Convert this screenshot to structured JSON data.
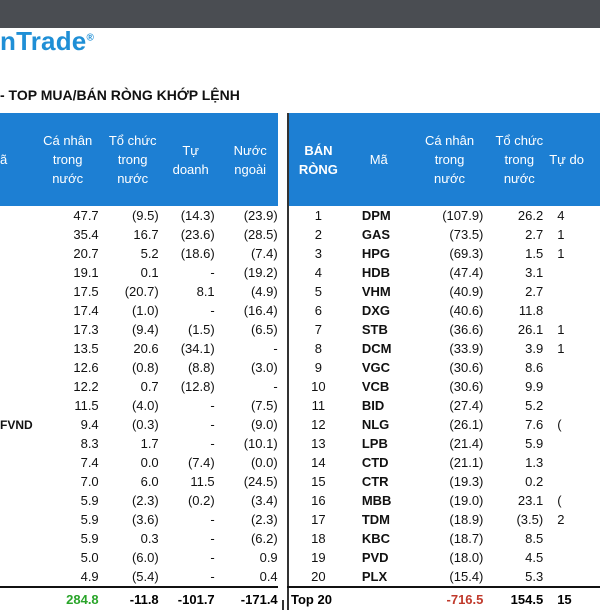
{
  "logo": {
    "text": "nTrade",
    "mark": "®"
  },
  "title": "- TOP MUA/BÁN RÒNG KHỚP LỆNH",
  "left": {
    "headers": {
      "code_fragment": "ã",
      "individual": [
        "Cá nhân",
        "trong",
        "nước"
      ],
      "institution": [
        "Tổ chức",
        "trong",
        "nước"
      ],
      "proprietary": [
        "Tự",
        "doanh"
      ],
      "foreign": [
        "Nước",
        "ngoài"
      ]
    },
    "rows": [
      {
        "label": "",
        "ind": "47.7",
        "ins": "(9.5)",
        "prop": "(14.3)",
        "for": "(23.9)"
      },
      {
        "label": "",
        "ind": "35.4",
        "ins": "16.7",
        "prop": "(23.6)",
        "for": "(28.5)"
      },
      {
        "label": "",
        "ind": "20.7",
        "ins": "5.2",
        "prop": "(18.6)",
        "for": "(7.4)"
      },
      {
        "label": "",
        "ind": "19.1",
        "ins": "0.1",
        "prop": "-",
        "for": "(19.2)"
      },
      {
        "label": "",
        "ind": "17.5",
        "ins": "(20.7)",
        "prop": "8.1",
        "for": "(4.9)"
      },
      {
        "label": "",
        "ind": "17.4",
        "ins": "(1.0)",
        "prop": "-",
        "for": "(16.4)"
      },
      {
        "label": "",
        "ind": "17.3",
        "ins": "(9.4)",
        "prop": "(1.5)",
        "for": "(6.5)"
      },
      {
        "label": "",
        "ind": "13.5",
        "ins": "20.6",
        "prop": "(34.1)",
        "for": "-"
      },
      {
        "label": "",
        "ind": "12.6",
        "ins": "(0.8)",
        "prop": "(8.8)",
        "for": "(3.0)"
      },
      {
        "label": "",
        "ind": "12.2",
        "ins": "0.7",
        "prop": "(12.8)",
        "for": "-"
      },
      {
        "label": "",
        "ind": "11.5",
        "ins": "(4.0)",
        "prop": "-",
        "for": "(7.5)"
      },
      {
        "label": "FVND",
        "ind": "9.4",
        "ins": "(0.3)",
        "prop": "-",
        "for": "(9.0)"
      },
      {
        "label": "",
        "ind": "8.3",
        "ins": "1.7",
        "prop": "-",
        "for": "(10.1)"
      },
      {
        "label": "",
        "ind": "7.4",
        "ins": "0.0",
        "prop": "(7.4)",
        "for": "(0.0)"
      },
      {
        "label": "",
        "ind": "7.0",
        "ins": "6.0",
        "prop": "11.5",
        "for": "(24.5)"
      },
      {
        "label": "",
        "ind": "5.9",
        "ins": "(2.3)",
        "prop": "(0.2)",
        "for": "(3.4)"
      },
      {
        "label": "",
        "ind": "5.9",
        "ins": "(3.6)",
        "prop": "-",
        "for": "(2.3)"
      },
      {
        "label": "",
        "ind": "5.9",
        "ins": "0.3",
        "prop": "-",
        "for": "(6.2)"
      },
      {
        "label": "",
        "ind": "5.0",
        "ins": "(6.0)",
        "prop": "-",
        "for": "0.9"
      },
      {
        "label": "",
        "ind": "4.9",
        "ins": "(5.4)",
        "prop": "-",
        "for": "0.4"
      }
    ],
    "total": {
      "ind": "284.8",
      "ins": "-11.8",
      "prop": "-101.7",
      "for": "-171.4"
    }
  },
  "right": {
    "headers": {
      "rank": [
        "BÁN",
        "RÒNG"
      ],
      "code": "Mã",
      "individual": [
        "Cá nhân",
        "trong",
        "nước"
      ],
      "institution": [
        "Tổ chức",
        "trong",
        "nước"
      ],
      "proprietary": "Tự do"
    },
    "rows": [
      {
        "rank": "1",
        "code": "DPM",
        "ind": "(107.9)",
        "ins": "26.2",
        "prop": "4"
      },
      {
        "rank": "2",
        "code": "GAS",
        "ind": "(73.5)",
        "ins": "2.7",
        "prop": "1"
      },
      {
        "rank": "3",
        "code": "HPG",
        "ind": "(69.3)",
        "ins": "1.5",
        "prop": "1"
      },
      {
        "rank": "4",
        "code": "HDB",
        "ind": "(47.4)",
        "ins": "3.1",
        "prop": ""
      },
      {
        "rank": "5",
        "code": "VHM",
        "ind": "(40.9)",
        "ins": "2.7",
        "prop": ""
      },
      {
        "rank": "6",
        "code": "DXG",
        "ind": "(40.6)",
        "ins": "11.8",
        "prop": ""
      },
      {
        "rank": "7",
        "code": "STB",
        "ind": "(36.6)",
        "ins": "26.1",
        "prop": "1"
      },
      {
        "rank": "8",
        "code": "DCM",
        "ind": "(33.9)",
        "ins": "3.9",
        "prop": "1"
      },
      {
        "rank": "9",
        "code": "VGC",
        "ind": "(30.6)",
        "ins": "8.6",
        "prop": ""
      },
      {
        "rank": "10",
        "code": "VCB",
        "ind": "(30.6)",
        "ins": "9.9",
        "prop": ""
      },
      {
        "rank": "11",
        "code": "BID",
        "ind": "(27.4)",
        "ins": "5.2",
        "prop": ""
      },
      {
        "rank": "12",
        "code": "NLG",
        "ind": "(26.1)",
        "ins": "7.6",
        "prop": "("
      },
      {
        "rank": "13",
        "code": "LPB",
        "ind": "(21.4)",
        "ins": "5.9",
        "prop": ""
      },
      {
        "rank": "14",
        "code": "CTD",
        "ind": "(21.1)",
        "ins": "1.3",
        "prop": ""
      },
      {
        "rank": "15",
        "code": "CTR",
        "ind": "(19.3)",
        "ins": "0.2",
        "prop": ""
      },
      {
        "rank": "16",
        "code": "MBB",
        "ind": "(19.0)",
        "ins": "23.1",
        "prop": "("
      },
      {
        "rank": "17",
        "code": "TDM",
        "ind": "(18.9)",
        "ins": "(3.5)",
        "prop": "2"
      },
      {
        "rank": "18",
        "code": "KBC",
        "ind": "(18.7)",
        "ins": "8.5",
        "prop": ""
      },
      {
        "rank": "19",
        "code": "PVD",
        "ind": "(18.0)",
        "ins": "4.5",
        "prop": ""
      },
      {
        "rank": "20",
        "code": "PLX",
        "ind": "(15.4)",
        "ins": "5.3",
        "prop": ""
      }
    ],
    "total": {
      "label": "Top 20",
      "ind": "-716.5",
      "ins": "154.5",
      "prop": "15"
    }
  }
}
